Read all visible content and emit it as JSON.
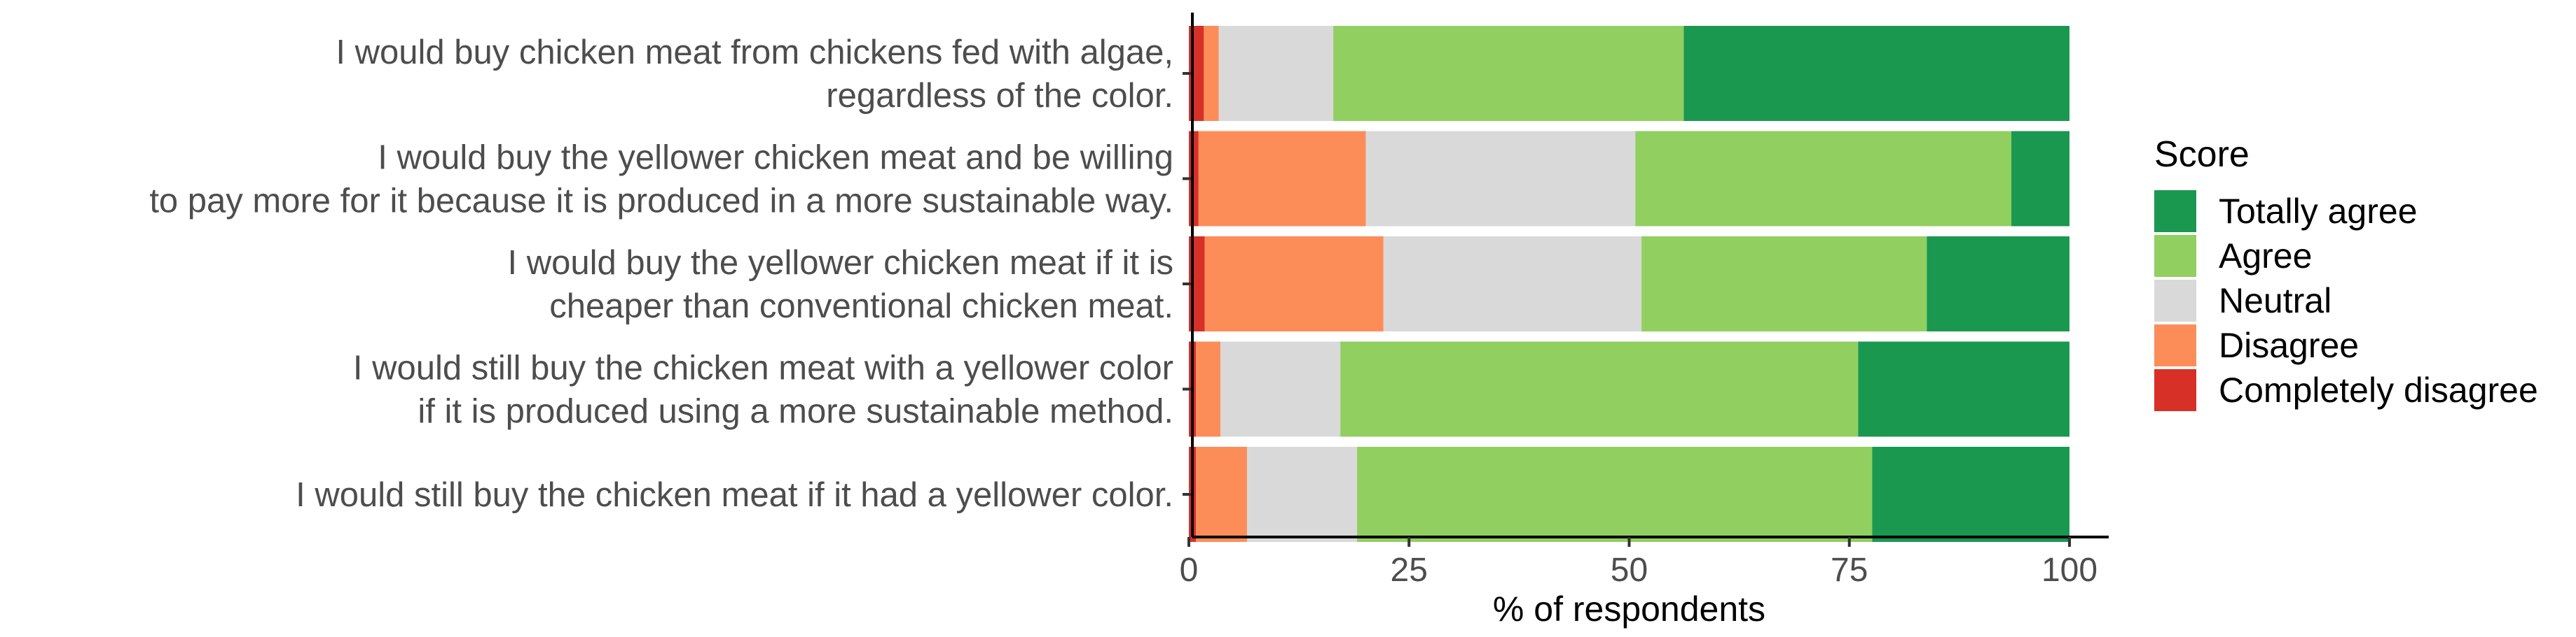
{
  "chart_data": {
    "type": "bar",
    "orientation": "horizontal",
    "stacked": true,
    "title": "",
    "xlabel": "% of respondents",
    "ylabel": "",
    "xlim": [
      0,
      100
    ],
    "xticks": [
      0,
      25,
      50,
      75,
      100
    ],
    "xtick_labels": [
      "0",
      "25",
      "50",
      "75",
      "100"
    ],
    "grid": false,
    "legend_position": "right",
    "legend_title": "Score",
    "categories": [
      [
        "I would buy chicken meat from chickens fed with algae,",
        "regardless of the color."
      ],
      [
        "I would buy the yellower chicken meat and be willing",
        "to pay more for it because it is produced in a more sustainable way."
      ],
      [
        "I would buy the yellower chicken meat if it is",
        "cheaper than conventional chicken meat."
      ],
      [
        "I would still buy the chicken meat with a yellower color",
        "if it is produced using a more sustainable method."
      ],
      [
        "I would still buy the chicken meat if it had a yellower color."
      ]
    ],
    "series": [
      {
        "name": "Completely disagree",
        "color": "#d73027",
        "values": [
          1.7,
          1.1,
          1.8,
          0.8,
          0.8
        ]
      },
      {
        "name": "Disagree",
        "color": "#fc8d59",
        "values": [
          1.7,
          19.0,
          20.3,
          2.8,
          5.8
        ]
      },
      {
        "name": "Neutral",
        "color": "#d9d9d9",
        "values": [
          13.0,
          30.6,
          29.3,
          13.6,
          12.5
        ]
      },
      {
        "name": "Agree",
        "color": "#91cf60",
        "values": [
          39.8,
          42.7,
          32.4,
          58.8,
          58.5
        ]
      },
      {
        "name": "Totally agree",
        "color": "#1a9850",
        "values": [
          43.8,
          6.6,
          16.2,
          24.0,
          22.4
        ]
      }
    ],
    "legend_order": [
      "Totally agree",
      "Agree",
      "Neutral",
      "Disagree",
      "Completely disagree"
    ]
  }
}
